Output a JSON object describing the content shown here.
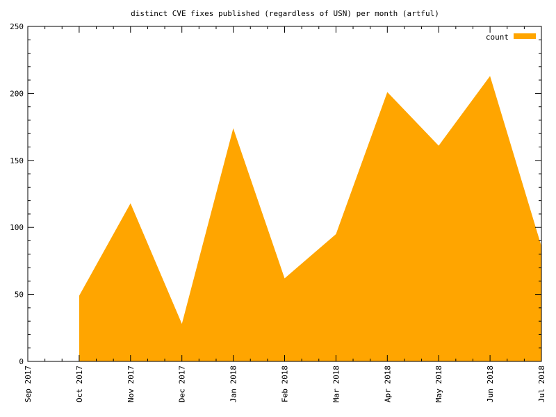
{
  "chart_data": {
    "type": "area",
    "title": "distinct CVE fixes published (regardless of USN) per month (artful)",
    "xlabel": "",
    "ylabel": "",
    "x": [
      "2017-09-01",
      "2017-10-01",
      "2017-11-01",
      "2017-12-01",
      "2018-01-01",
      "2018-02-01",
      "2018-03-01",
      "2018-04-01",
      "2018-05-01",
      "2018-06-01",
      "2018-07-01"
    ],
    "xtick_labels": [
      "Sep 2017",
      "Oct 2017",
      "Nov 2017",
      "Dec 2017",
      "Jan 2018",
      "Feb 2018",
      "Mar 2018",
      "Apr 2018",
      "May 2018",
      "Jun 2018",
      "Jul 2018"
    ],
    "series": [
      {
        "name": "count",
        "color": "#ffa500",
        "points": [
          {
            "x": "2017-10-01",
            "y": 49
          },
          {
            "x": "2017-11-01",
            "y": 118
          },
          {
            "x": "2017-12-01",
            "y": 28
          },
          {
            "x": "2018-01-01",
            "y": 174
          },
          {
            "x": "2018-02-01",
            "y": 62
          },
          {
            "x": "2018-03-01",
            "y": 95
          },
          {
            "x": "2018-04-01",
            "y": 201
          },
          {
            "x": "2018-05-01",
            "y": 161
          },
          {
            "x": "2018-06-01",
            "y": 213
          },
          {
            "x": "2018-07-01",
            "y": 86
          }
        ]
      }
    ],
    "ylim": [
      0,
      250
    ],
    "yticks": [
      0,
      50,
      100,
      150,
      200,
      250
    ],
    "xlim": [
      "2017-09-01",
      "2018-07-01"
    ],
    "grid": false,
    "legend": "top-right"
  }
}
